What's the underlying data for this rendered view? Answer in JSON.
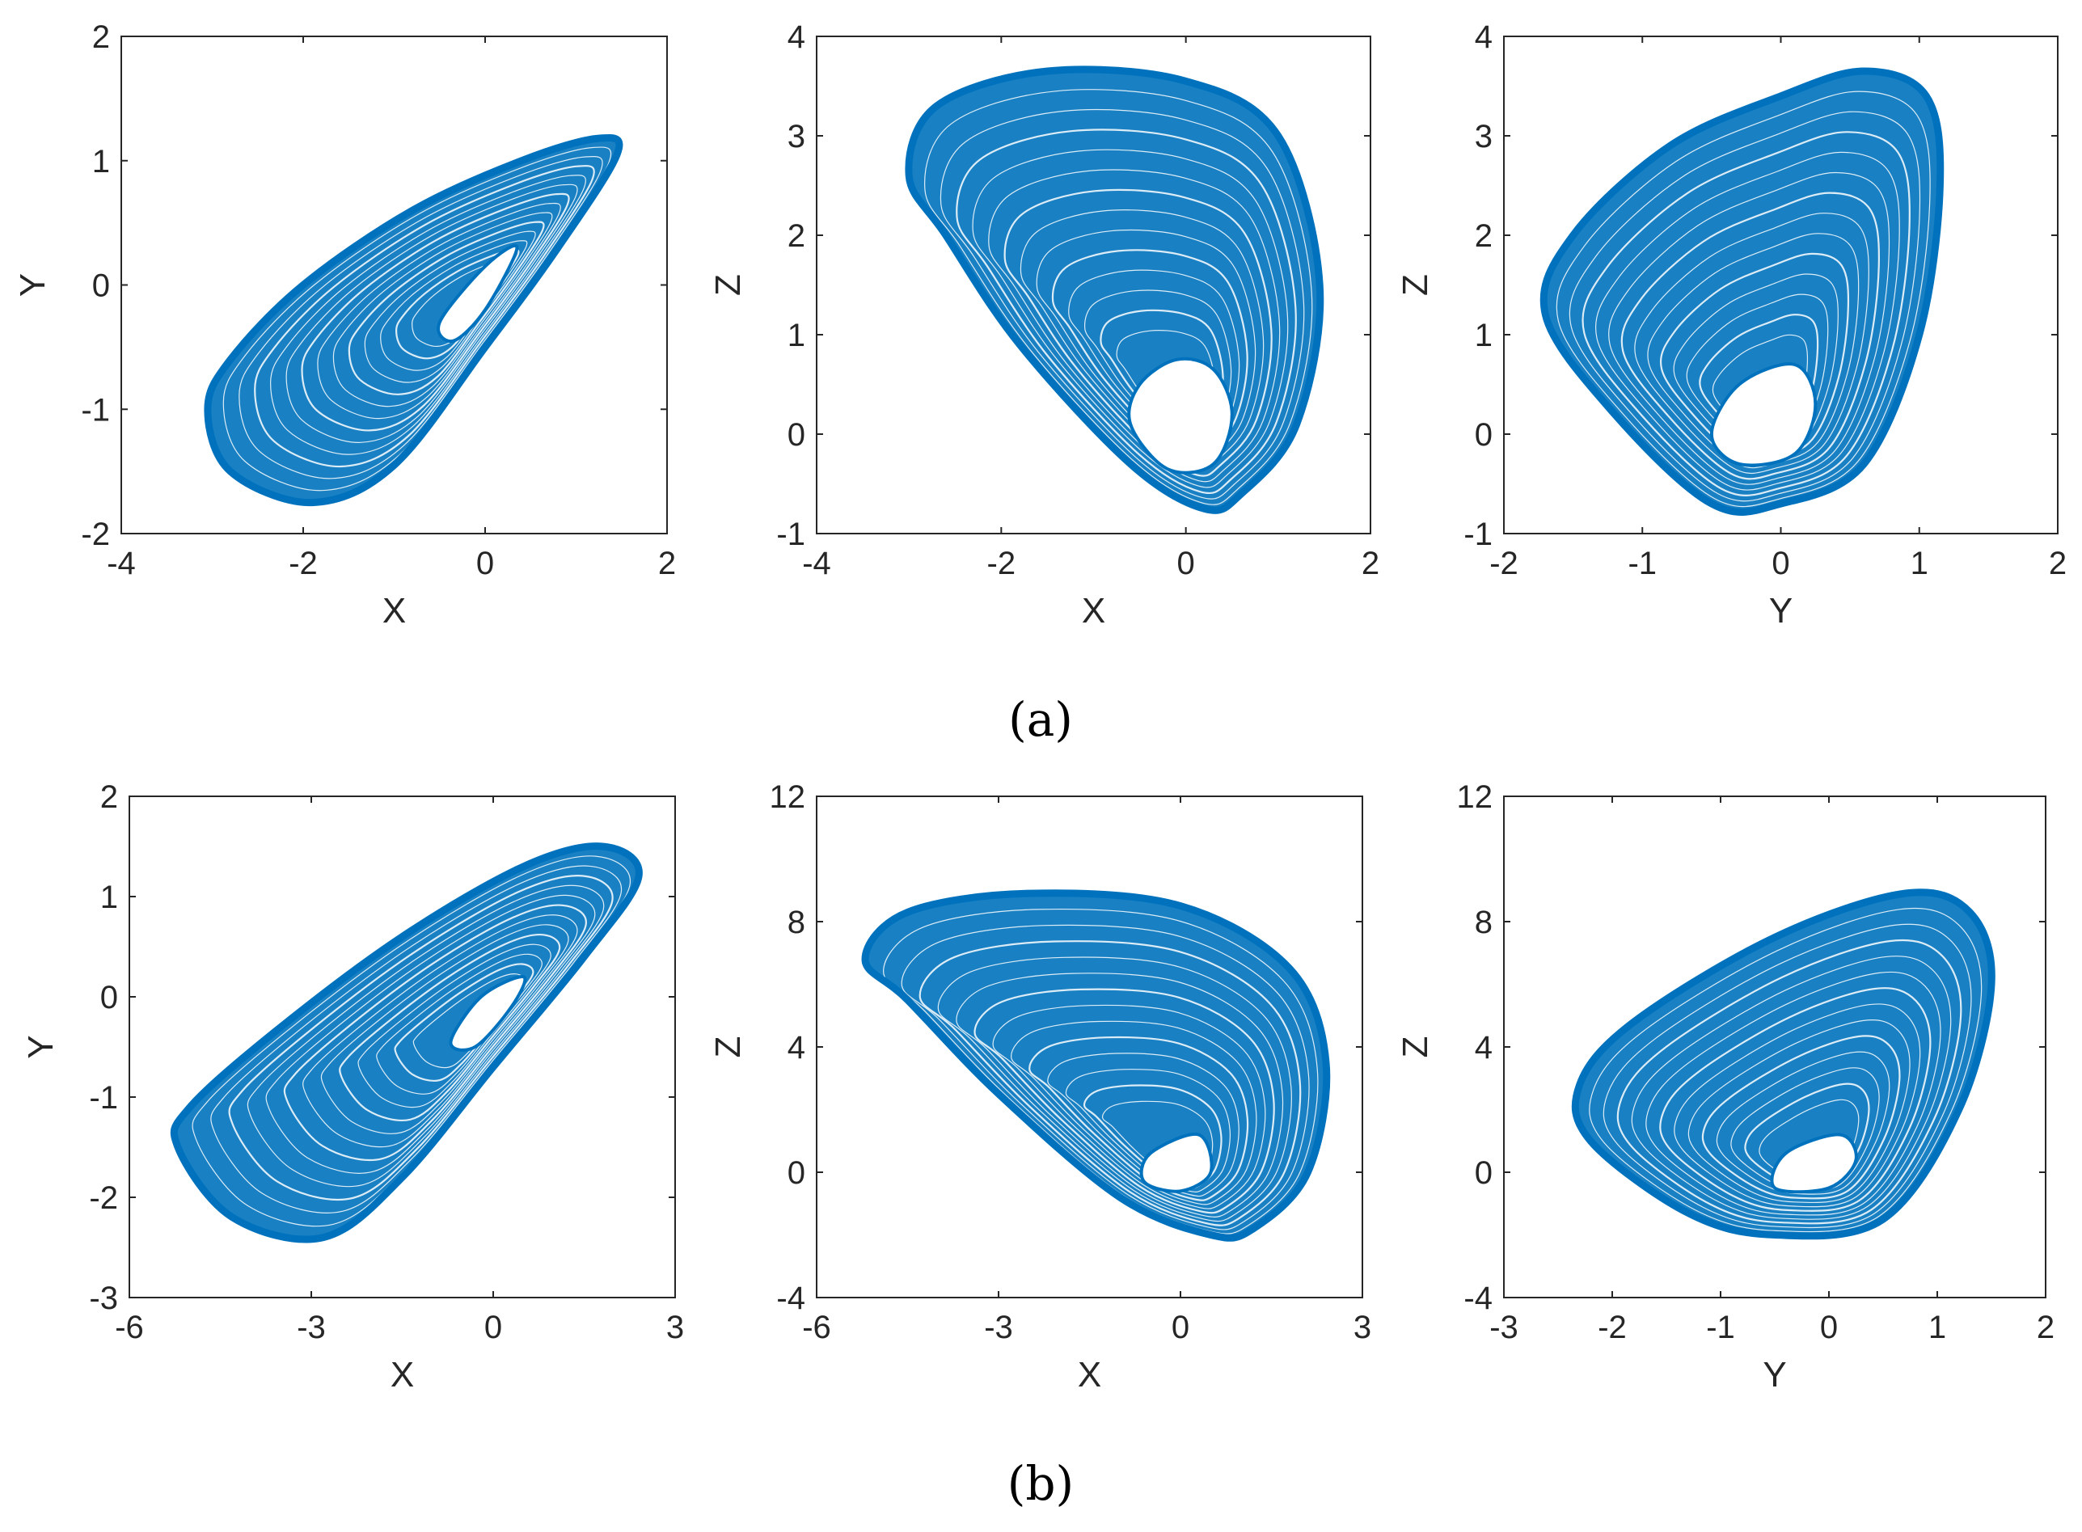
{
  "figure": {
    "captions": [
      "(a)",
      "(b)"
    ]
  },
  "colors": {
    "series": "#0072BD",
    "axis": "#262626"
  },
  "chart_data": [
    {
      "type": "line",
      "panel": "a1",
      "title": "",
      "xlabel": "X",
      "ylabel": "Y",
      "xlim": [
        -4,
        2
      ],
      "ylim": [
        -2,
        2
      ],
      "xticks": [
        -4,
        -2,
        0,
        2
      ],
      "yticks": [
        -2,
        -1,
        0,
        1,
        2
      ],
      "xtick_labels": [
        "-4",
        "-2",
        "0",
        "2"
      ],
      "ytick_labels": [
        "-2",
        "-1",
        "0",
        "1",
        "2"
      ],
      "outer": [
        [
          1.45,
          1.05
        ],
        [
          1.25,
          1.18
        ],
        [
          0.4,
          1.0
        ],
        [
          -0.8,
          0.6
        ],
        [
          -2.0,
          0.0
        ],
        [
          -2.8,
          -0.6
        ],
        [
          -3.05,
          -1.0
        ],
        [
          -2.8,
          -1.5
        ],
        [
          -1.9,
          -1.75
        ],
        [
          -1.0,
          -1.45
        ],
        [
          0.0,
          -0.5
        ],
        [
          0.8,
          0.3
        ]
      ],
      "hole": [
        [
          0.35,
          0.3
        ],
        [
          0.0,
          0.15
        ],
        [
          -0.5,
          -0.3
        ],
        [
          -0.35,
          -0.45
        ],
        [
          0.0,
          -0.2
        ]
      ],
      "grid": false
    },
    {
      "type": "line",
      "panel": "a2",
      "title": "",
      "xlabel": "X",
      "ylabel": "Z",
      "xlim": [
        -4,
        2
      ],
      "ylim": [
        -1,
        4
      ],
      "xticks": [
        -4,
        -2,
        0,
        2
      ],
      "yticks": [
        -1,
        0,
        1,
        2,
        3,
        4
      ],
      "xtick_labels": [
        "-4",
        "-2",
        "0",
        "2"
      ],
      "ytick_labels": [
        "-1",
        "0",
        "1",
        "2",
        "3",
        "4"
      ],
      "outer": [
        [
          -3.0,
          2.6
        ],
        [
          -2.7,
          3.3
        ],
        [
          -1.5,
          3.65
        ],
        [
          0.0,
          3.55
        ],
        [
          1.0,
          3.0
        ],
        [
          1.45,
          1.5
        ],
        [
          1.2,
          0.1
        ],
        [
          0.6,
          -0.6
        ],
        [
          0.2,
          -0.75
        ],
        [
          -0.6,
          -0.3
        ],
        [
          -1.8,
          0.9
        ],
        [
          -2.6,
          2.0
        ]
      ],
      "hole": [
        [
          -0.1,
          0.75
        ],
        [
          -0.5,
          0.5
        ],
        [
          -0.6,
          0.1
        ],
        [
          -0.2,
          -0.35
        ],
        [
          0.3,
          -0.3
        ],
        [
          0.5,
          0.2
        ],
        [
          0.3,
          0.65
        ]
      ],
      "grid": false
    },
    {
      "type": "line",
      "panel": "a3",
      "title": "",
      "xlabel": "Y",
      "ylabel": "Z",
      "xlim": [
        -2,
        2
      ],
      "ylim": [
        -1,
        4
      ],
      "xticks": [
        -2,
        -1,
        0,
        1,
        2
      ],
      "yticks": [
        -1,
        0,
        1,
        2,
        3,
        4
      ],
      "xtick_labels": [
        "-2",
        "-1",
        "0",
        "1",
        "2"
      ],
      "ytick_labels": [
        "-1",
        "0",
        "1",
        "2",
        "3",
        "4"
      ],
      "outer": [
        [
          -1.7,
          1.2
        ],
        [
          -1.5,
          2.0
        ],
        [
          -0.8,
          2.9
        ],
        [
          0.0,
          3.4
        ],
        [
          0.6,
          3.65
        ],
        [
          1.05,
          3.4
        ],
        [
          1.15,
          2.5
        ],
        [
          1.0,
          1.0
        ],
        [
          0.6,
          -0.3
        ],
        [
          0.0,
          -0.7
        ],
        [
          -0.5,
          -0.7
        ],
        [
          -1.2,
          0.2
        ]
      ],
      "hole": [
        [
          0.1,
          0.7
        ],
        [
          -0.3,
          0.5
        ],
        [
          -0.5,
          0.0
        ],
        [
          -0.3,
          -0.3
        ],
        [
          0.1,
          -0.2
        ],
        [
          0.25,
          0.3
        ]
      ],
      "grid": false
    },
    {
      "type": "line",
      "panel": "b1",
      "title": "",
      "xlabel": "X",
      "ylabel": "Y",
      "xlim": [
        -6,
        3
      ],
      "ylim": [
        -3,
        2
      ],
      "xticks": [
        -6,
        -3,
        0,
        3
      ],
      "yticks": [
        -3,
        -2,
        -1,
        0,
        1,
        2
      ],
      "xtick_labels": [
        "-6",
        "-3",
        "0",
        "3"
      ],
      "ytick_labels": [
        "-3",
        "-2",
        "-1",
        "0",
        "1",
        "2"
      ],
      "outer": [
        [
          2.4,
          1.2
        ],
        [
          1.8,
          1.5
        ],
        [
          0.5,
          1.3
        ],
        [
          -1.5,
          0.6
        ],
        [
          -3.5,
          -0.3
        ],
        [
          -5.0,
          -1.1
        ],
        [
          -5.2,
          -1.5
        ],
        [
          -4.3,
          -2.2
        ],
        [
          -2.8,
          -2.4
        ],
        [
          -1.5,
          -1.8
        ],
        [
          0.0,
          -0.7
        ],
        [
          1.5,
          0.4
        ]
      ],
      "hole": [
        [
          0.5,
          0.2
        ],
        [
          -0.2,
          0.0
        ],
        [
          -0.7,
          -0.45
        ],
        [
          -0.3,
          -0.5
        ],
        [
          0.3,
          -0.1
        ]
      ],
      "grid": false
    },
    {
      "type": "line",
      "panel": "b2",
      "title": "",
      "xlabel": "X",
      "ylabel": "Z",
      "xlim": [
        -6,
        3
      ],
      "ylim": [
        -4,
        12
      ],
      "xticks": [
        -6,
        -3,
        0,
        3
      ],
      "yticks": [
        -4,
        0,
        4,
        8,
        12
      ],
      "xtick_labels": [
        "-6",
        "-3",
        "0",
        "3"
      ],
      "ytick_labels": [
        "-4",
        "0",
        "4",
        "8",
        "12"
      ],
      "outer": [
        [
          -5.2,
          6.8
        ],
        [
          -4.5,
          8.3
        ],
        [
          -2.5,
          8.9
        ],
        [
          0.0,
          8.5
        ],
        [
          1.8,
          6.5
        ],
        [
          2.4,
          3.5
        ],
        [
          2.1,
          0.0
        ],
        [
          1.2,
          -1.8
        ],
        [
          0.5,
          -2.0
        ],
        [
          -1.0,
          -0.8
        ],
        [
          -3.0,
          2.5
        ],
        [
          -4.5,
          5.5
        ]
      ],
      "hole": [
        [
          0.3,
          1.2
        ],
        [
          -0.5,
          0.6
        ],
        [
          -0.6,
          -0.3
        ],
        [
          0.0,
          -0.6
        ],
        [
          0.5,
          0.0
        ]
      ],
      "grid": false
    },
    {
      "type": "line",
      "panel": "b3",
      "title": "",
      "xlabel": "Y",
      "ylabel": "Z",
      "xlim": [
        -3,
        2
      ],
      "ylim": [
        -4,
        12
      ],
      "xticks": [
        -3,
        -2,
        -1,
        0,
        1,
        2
      ],
      "yticks": [
        -4,
        0,
        4,
        8,
        12
      ],
      "xtick_labels": [
        "-3",
        "-2",
        "-1",
        "0",
        "1",
        "2"
      ],
      "ytick_labels": [
        "-4",
        "0",
        "4",
        "8",
        "12"
      ],
      "outer": [
        [
          -2.3,
          2.8
        ],
        [
          -1.8,
          4.8
        ],
        [
          -0.5,
          7.5
        ],
        [
          0.7,
          8.9
        ],
        [
          1.3,
          8.3
        ],
        [
          1.5,
          6.0
        ],
        [
          1.2,
          2.0
        ],
        [
          0.5,
          -1.5
        ],
        [
          -0.5,
          -2.0
        ],
        [
          -1.3,
          -1.3
        ],
        [
          -2.2,
          1.0
        ]
      ],
      "hole": [
        [
          0.1,
          1.2
        ],
        [
          -0.4,
          0.6
        ],
        [
          -0.5,
          -0.5
        ],
        [
          0.0,
          -0.5
        ],
        [
          0.25,
          0.4
        ]
      ],
      "grid": false
    }
  ]
}
